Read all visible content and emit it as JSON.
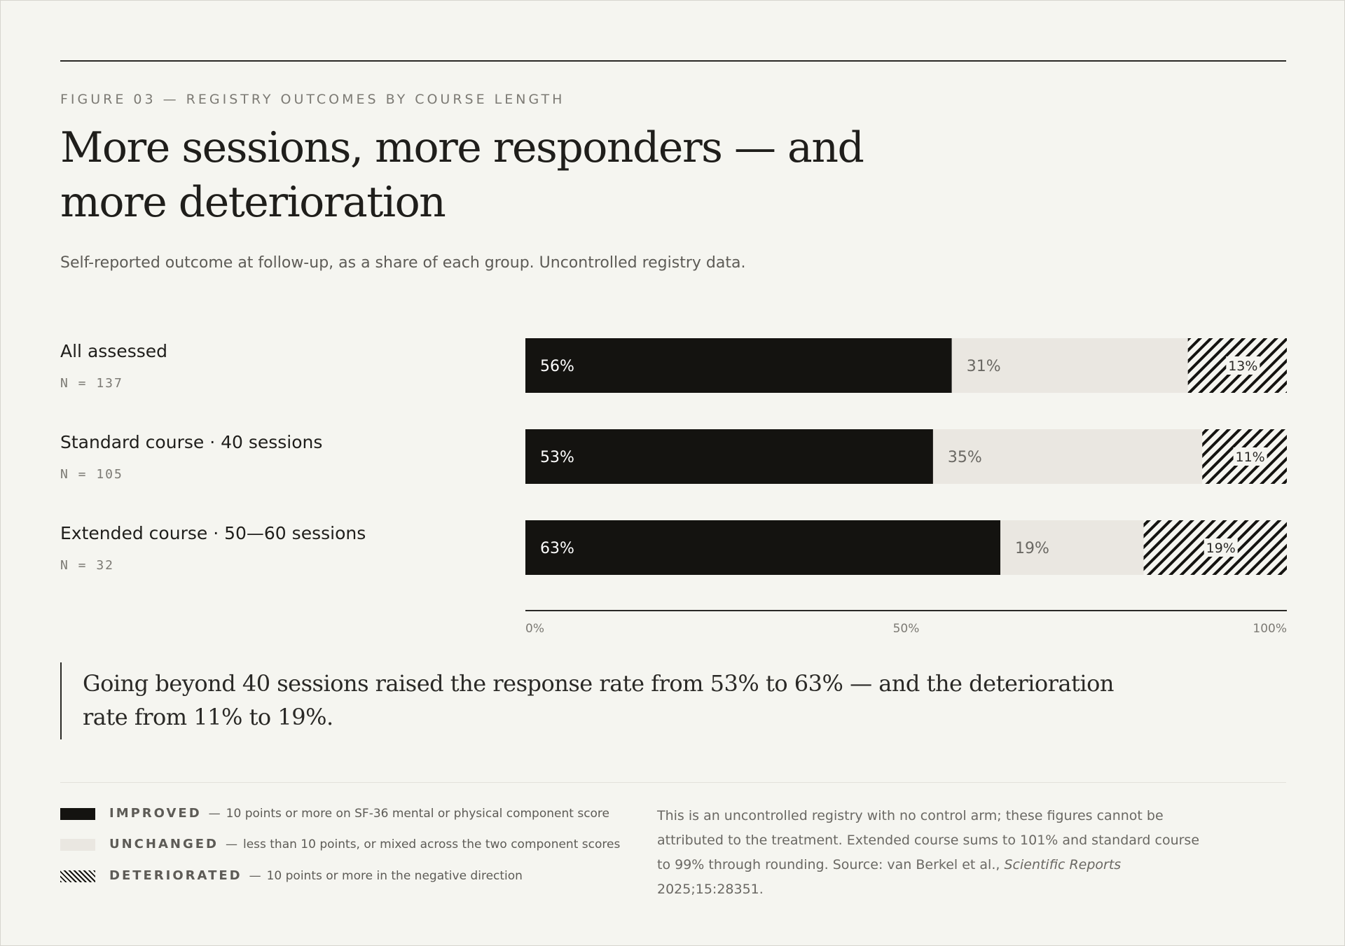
{
  "eyebrow": "FIGURE 03 — REGISTRY OUTCOMES BY COURSE LENGTH",
  "title": "More sessions, more responders — and more deterioration",
  "subtitle": "Self-reported outcome at follow-up, as a share of each group. Uncontrolled registry data.",
  "rows": [
    {
      "label": "All assessed",
      "n": "N = 137"
    },
    {
      "label": "Standard course · 40 sessions",
      "n": "N = 105"
    },
    {
      "label": "Extended course · 50—60 sessions",
      "n": "N = 32"
    }
  ],
  "chart_data": {
    "type": "bar",
    "orientation": "horizontal",
    "stacked": true,
    "categories": [
      "All assessed",
      "Standard course · 40 sessions",
      "Extended course · 50—60 sessions"
    ],
    "series": [
      {
        "name": "IMPROVED",
        "values": [
          56,
          53,
          63
        ],
        "labels": [
          "56%",
          "53%",
          "63%"
        ],
        "color": "#141310"
      },
      {
        "name": "UNCHANGED",
        "values": [
          31,
          35,
          19
        ],
        "labels": [
          "31%",
          "35%",
          "19%"
        ],
        "color": "#eae7e1"
      },
      {
        "name": "DETERIORATED",
        "values": [
          13,
          11,
          19
        ],
        "labels": [
          "13%",
          "11%",
          "19%"
        ],
        "color": "hatched"
      }
    ],
    "x_ticks": [
      "0%",
      "50%",
      "100%"
    ],
    "xlim": [
      0,
      100
    ]
  },
  "callout": "Going beyond 40 sessions raised the response rate from 53% to 63% — and the deterioration rate from 11% to 19%.",
  "legend": [
    {
      "key": "IMPROVED",
      "desc": "10 points or more on SF-36 mental or physical component score"
    },
    {
      "key": "UNCHANGED",
      "desc": "less than 10 points, or mixed across the two component scores"
    },
    {
      "key": "DETERIORATED",
      "desc": "10 points or more in the negative direction"
    }
  ],
  "note": {
    "text": "This is an uncontrolled registry with no control arm; these figures cannot be attributed to the treatment. Extended course sums to 101% and standard course to 99% through rounding. Source: van Berkel et al.,",
    "journal": "Scientific Reports",
    "ref": "2025;15:28351."
  }
}
